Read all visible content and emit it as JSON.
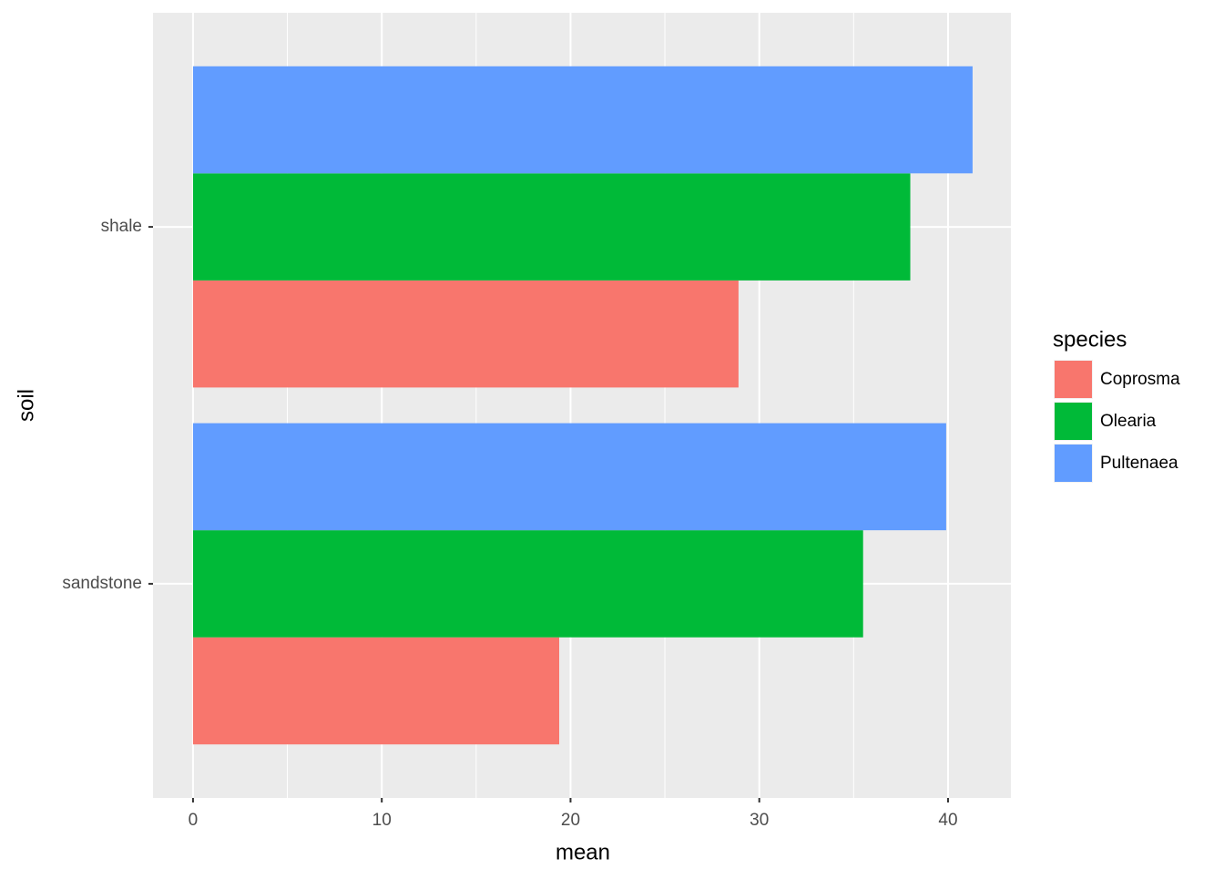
{
  "chart_data": {
    "type": "bar",
    "orientation": "horizontal",
    "x_label": "mean",
    "y_label": "soil",
    "categories": [
      "sandstone",
      "shale"
    ],
    "series": [
      {
        "name": "Coprosma",
        "color": "#f8766d",
        "values": [
          19.4,
          28.9
        ]
      },
      {
        "name": "Olearia",
        "color": "#00ba38",
        "values": [
          35.5,
          38.0
        ]
      },
      {
        "name": "Pultenaea",
        "color": "#619cff",
        "values": [
          39.9,
          41.3
        ]
      }
    ],
    "xlim": [
      -2.12,
      43.33
    ],
    "xticks": [
      0,
      10,
      20,
      30,
      40
    ],
    "grid": true,
    "minor_grid": true,
    "legend_title": "species",
    "legend_position": "right"
  }
}
